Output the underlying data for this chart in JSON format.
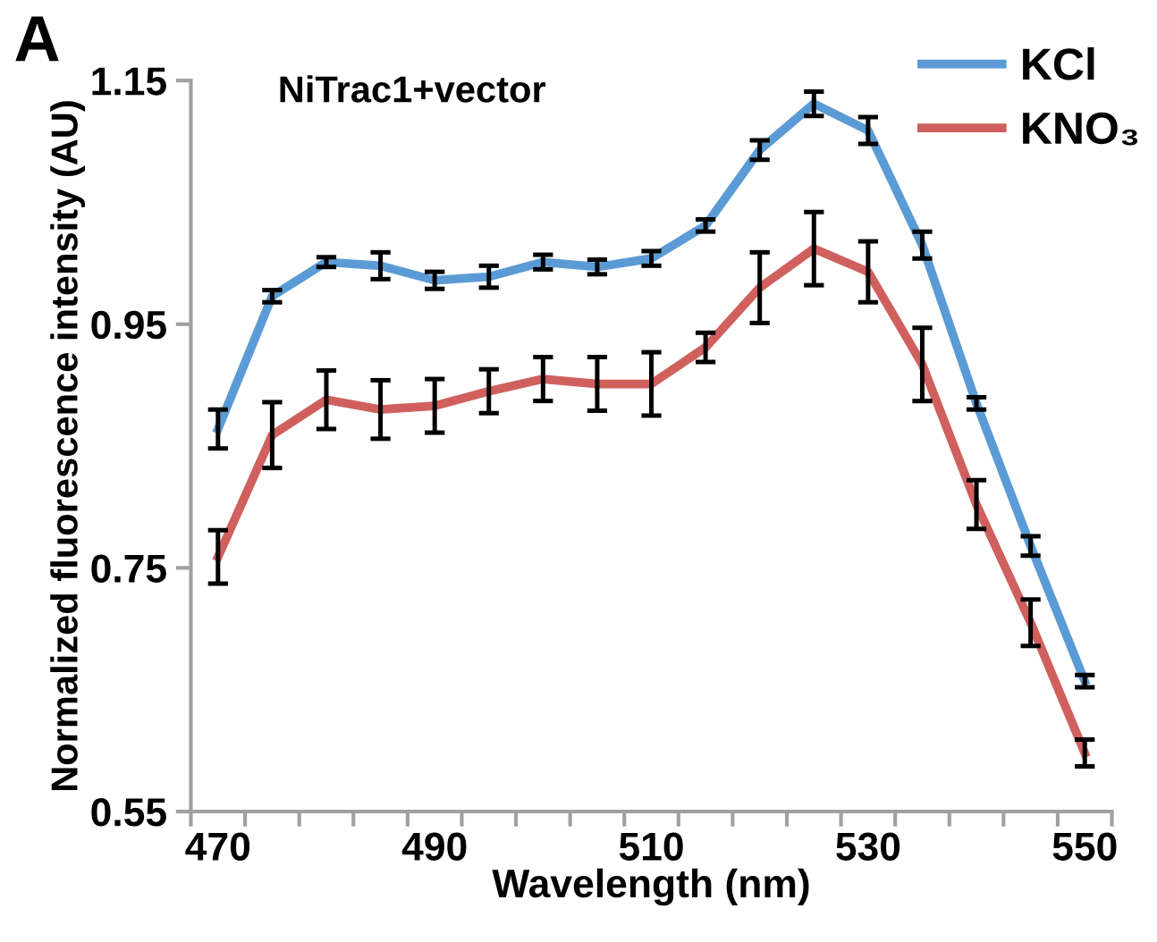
{
  "chart_data": {
    "type": "line",
    "title": "NiTrac1+vector",
    "xlabel": "Wavelength (nm)",
    "ylabel": "Normalized fluorescence intensity (AU)",
    "annotations": [
      "A"
    ],
    "categories": [
      "470",
      null,
      null,
      null,
      "490",
      null,
      null,
      null,
      "510",
      null,
      null,
      null,
      "530",
      null,
      null,
      null,
      "550"
    ],
    "series": [
      {
        "name": "KCl",
        "color": "#5b9bd5",
        "values": [
          0.864,
          0.973,
          1.001,
          0.998,
          0.986,
          0.989,
          1.001,
          0.997,
          1.004,
          1.031,
          1.093,
          1.131,
          1.109,
          1.015,
          0.885,
          0.768,
          0.657
        ],
        "errors": [
          0.016,
          0.005,
          0.004,
          0.011,
          0.007,
          0.009,
          0.006,
          0.006,
          0.006,
          0.005,
          0.008,
          0.01,
          0.011,
          0.011,
          0.005,
          0.008,
          0.005
        ]
      },
      {
        "name": "KNO₃",
        "color": "#d0605e",
        "values": [
          0.759,
          0.859,
          0.888,
          0.88,
          0.883,
          0.895,
          0.905,
          0.901,
          0.901,
          0.931,
          0.98,
          1.012,
          0.993,
          0.917,
          0.802,
          0.705,
          0.598
        ],
        "errors": [
          0.022,
          0.027,
          0.024,
          0.024,
          0.022,
          0.018,
          0.018,
          0.022,
          0.026,
          0.012,
          0.029,
          0.03,
          0.025,
          0.03,
          0.02,
          0.019,
          0.011
        ]
      }
    ],
    "ylim": [
      0.55,
      1.15
    ],
    "yticks": [
      0.55,
      0.75,
      0.95,
      1.15
    ],
    "grid": false,
    "legend": "top right",
    "marker": "none",
    "line_style": "solid"
  }
}
